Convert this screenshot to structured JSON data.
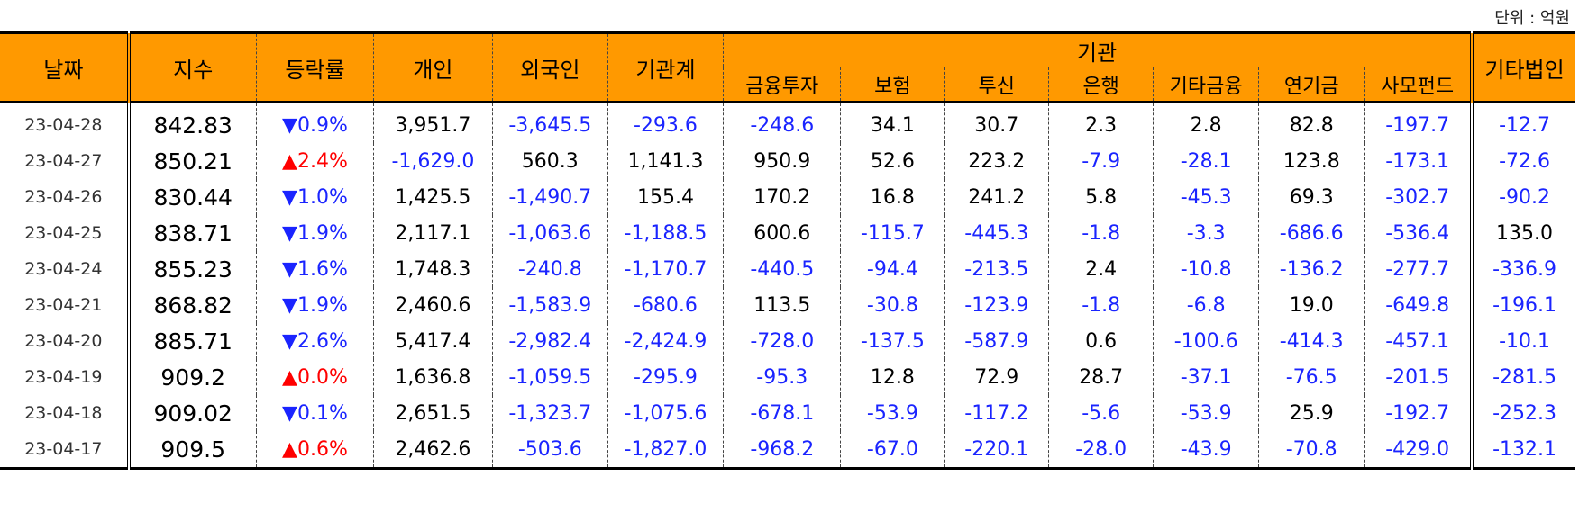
{
  "unit_label": "단위 : 억원",
  "headers": {
    "date": "날짜",
    "index": "지수",
    "change": "등락률",
    "individual": "개인",
    "foreign": "외국인",
    "institution_total": "기관계",
    "institution_group": "기관",
    "financial_investment": "금융투자",
    "insurance": "보험",
    "investment_trust": "투신",
    "bank": "은행",
    "other_financial": "기타금융",
    "pension": "연기금",
    "private_equity": "사모펀드",
    "other_corporation": "기타법인"
  },
  "rows": [
    {
      "date": "23-04-28",
      "index": "842.83",
      "dir": "down",
      "change": "0.9%",
      "individual": "3,951.7",
      "foreign": "-3,645.5",
      "inst": "-293.6",
      "fin": "-248.6",
      "ins": "34.1",
      "trust": "30.7",
      "bank": "2.3",
      "etcfin": "2.8",
      "pension": "82.8",
      "pef": "-197.7",
      "corp": "-12.7"
    },
    {
      "date": "23-04-27",
      "index": "850.21",
      "dir": "up",
      "change": "2.4%",
      "individual": "-1,629.0",
      "foreign": "560.3",
      "inst": "1,141.3",
      "fin": "950.9",
      "ins": "52.6",
      "trust": "223.2",
      "bank": "-7.9",
      "etcfin": "-28.1",
      "pension": "123.8",
      "pef": "-173.1",
      "corp": "-72.6"
    },
    {
      "date": "23-04-26",
      "index": "830.44",
      "dir": "down",
      "change": "1.0%",
      "individual": "1,425.5",
      "foreign": "-1,490.7",
      "inst": "155.4",
      "fin": "170.2",
      "ins": "16.8",
      "trust": "241.2",
      "bank": "5.8",
      "etcfin": "-45.3",
      "pension": "69.3",
      "pef": "-302.7",
      "corp": "-90.2"
    },
    {
      "date": "23-04-25",
      "index": "838.71",
      "dir": "down",
      "change": "1.9%",
      "individual": "2,117.1",
      "foreign": "-1,063.6",
      "inst": "-1,188.5",
      "fin": "600.6",
      "ins": "-115.7",
      "trust": "-445.3",
      "bank": "-1.8",
      "etcfin": "-3.3",
      "pension": "-686.6",
      "pef": "-536.4",
      "corp": "135.0"
    },
    {
      "date": "23-04-24",
      "index": "855.23",
      "dir": "down",
      "change": "1.6%",
      "individual": "1,748.3",
      "foreign": "-240.8",
      "inst": "-1,170.7",
      "fin": "-440.5",
      "ins": "-94.4",
      "trust": "-213.5",
      "bank": "2.4",
      "etcfin": "-10.8",
      "pension": "-136.2",
      "pef": "-277.7",
      "corp": "-336.9"
    },
    {
      "date": "23-04-21",
      "index": "868.82",
      "dir": "down",
      "change": "1.9%",
      "individual": "2,460.6",
      "foreign": "-1,583.9",
      "inst": "-680.6",
      "fin": "113.5",
      "ins": "-30.8",
      "trust": "-123.9",
      "bank": "-1.8",
      "etcfin": "-6.8",
      "pension": "19.0",
      "pef": "-649.8",
      "corp": "-196.1"
    },
    {
      "date": "23-04-20",
      "index": "885.71",
      "dir": "down",
      "change": "2.6%",
      "individual": "5,417.4",
      "foreign": "-2,982.4",
      "inst": "-2,424.9",
      "fin": "-728.0",
      "ins": "-137.5",
      "trust": "-587.9",
      "bank": "0.6",
      "etcfin": "-100.6",
      "pension": "-414.3",
      "pef": "-457.1",
      "corp": "-10.1"
    },
    {
      "date": "23-04-19",
      "index": "909.2",
      "dir": "up",
      "change": "0.0%",
      "individual": "1,636.8",
      "foreign": "-1,059.5",
      "inst": "-295.9",
      "fin": "-95.3",
      "ins": "12.8",
      "trust": "72.9",
      "bank": "28.7",
      "etcfin": "-37.1",
      "pension": "-76.5",
      "pef": "-201.5",
      "corp": "-281.5"
    },
    {
      "date": "23-04-18",
      "index": "909.02",
      "dir": "down",
      "change": "0.1%",
      "individual": "2,651.5",
      "foreign": "-1,323.7",
      "inst": "-1,075.6",
      "fin": "-678.1",
      "ins": "-53.9",
      "trust": "-117.2",
      "bank": "-5.6",
      "etcfin": "-53.9",
      "pension": "25.9",
      "pef": "-192.7",
      "corp": "-252.3"
    },
    {
      "date": "23-04-17",
      "index": "909.5",
      "dir": "up",
      "change": "0.6%",
      "individual": "2,462.6",
      "foreign": "-503.6",
      "inst": "-1,827.0",
      "fin": "-968.2",
      "ins": "-67.0",
      "trust": "-220.1",
      "bank": "-28.0",
      "etcfin": "-43.9",
      "pension": "-70.8",
      "pef": "-429.0",
      "corp": "-132.1"
    }
  ],
  "colors": {
    "header_bg": "#ff9900",
    "negative": "#1a24ff",
    "up": "#ff0000",
    "down": "#1a24ff"
  }
}
